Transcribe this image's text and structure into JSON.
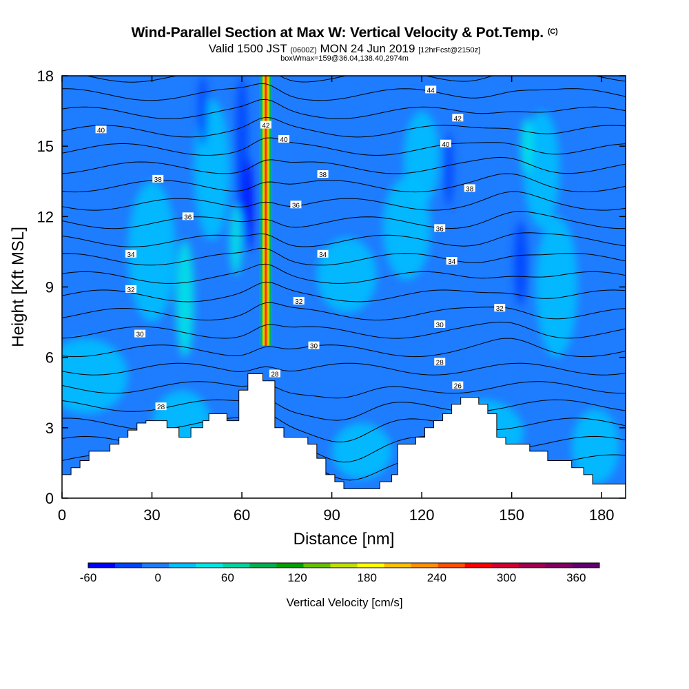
{
  "header": {
    "title": "Wind-Parallel Section at Max W: Vertical Velocity & Pot.Temp.",
    "title_tag": "(C)",
    "subtitle_prefix": "Valid 1500 JST",
    "subtitle_small": "(0600Z)",
    "subtitle_mid": "MON 24 Jun 2019",
    "subtitle_suffix": "[12hrFcst@2150z]",
    "box_info": "boxWmax=159@36.04,138.40,2974m"
  },
  "colors": {
    "background_field": "#1e7cff",
    "terrain": "#ffffff",
    "contour": "#000000",
    "colorbar": [
      "#0000ff",
      "#0044ff",
      "#1e7cff",
      "#00bfff",
      "#00e5e5",
      "#00d3a0",
      "#00b050",
      "#00a000",
      "#66c000",
      "#c0e000",
      "#ffff00",
      "#ffc000",
      "#ff9000",
      "#ff5000",
      "#ff0000",
      "#d00030",
      "#a00050",
      "#800060",
      "#600070"
    ]
  },
  "chart_data": {
    "type": "heatmap",
    "xlabel": "Distance [nm]",
    "ylabel": "Height [Kft MSL]",
    "xlim": [
      0,
      188
    ],
    "ylim": [
      0,
      18
    ],
    "x_ticks": [
      "0",
      "30",
      "60",
      "90",
      "120",
      "150",
      "180"
    ],
    "y_ticks": [
      "0",
      "3",
      "6",
      "9",
      "12",
      "15",
      "18"
    ],
    "colorbar": {
      "label": "Vertical Velocity [cm/s]",
      "range": [
        -60,
        380
      ],
      "tick_labels": [
        "-60",
        "0",
        "60",
        "120",
        "180",
        "240",
        "300",
        "360"
      ],
      "tick_values": [
        -60,
        0,
        60,
        120,
        180,
        240,
        300,
        360
      ]
    },
    "max_updraft": {
      "x": 68,
      "ymin": 6.5,
      "ymax": 18,
      "peak_cm_s": 340
    },
    "terrain": [
      [
        0,
        1.0
      ],
      [
        3,
        1.3
      ],
      [
        6,
        1.6
      ],
      [
        9,
        2.0
      ],
      [
        16,
        2.3
      ],
      [
        19,
        2.6
      ],
      [
        22,
        2.9
      ],
      [
        25,
        3.2
      ],
      [
        28,
        3.3
      ],
      [
        35,
        3.0
      ],
      [
        39,
        2.6
      ],
      [
        43,
        3.0
      ],
      [
        47,
        3.3
      ],
      [
        49,
        3.6
      ],
      [
        55,
        3.3
      ],
      [
        59,
        4.6
      ],
      [
        62,
        5.3
      ],
      [
        67,
        5.0
      ],
      [
        71,
        3.0
      ],
      [
        74,
        2.6
      ],
      [
        82,
        2.3
      ],
      [
        85,
        1.7
      ],
      [
        88,
        1.0
      ],
      [
        91,
        0.7
      ],
      [
        94,
        0.4
      ],
      [
        100,
        0.4
      ],
      [
        106,
        0.7
      ],
      [
        110,
        1.0
      ],
      [
        112,
        2.3
      ],
      [
        118,
        2.6
      ],
      [
        121,
        3.0
      ],
      [
        124,
        3.3
      ],
      [
        127,
        3.6
      ],
      [
        130,
        4.0
      ],
      [
        133,
        4.3
      ],
      [
        139,
        4.0
      ],
      [
        142,
        3.6
      ],
      [
        145,
        2.6
      ],
      [
        148,
        2.3
      ],
      [
        156,
        2.0
      ],
      [
        162,
        1.6
      ],
      [
        170,
        1.3
      ],
      [
        174,
        1.0
      ],
      [
        177,
        0.6
      ],
      [
        188,
        0.6
      ]
    ],
    "isentrope_labels": [
      {
        "text": "44",
        "x": 123,
        "y": 17.4
      },
      {
        "text": "42",
        "x": 68,
        "y": 15.9
      },
      {
        "text": "42",
        "x": 132,
        "y": 16.2
      },
      {
        "text": "40",
        "x": 13,
        "y": 15.7
      },
      {
        "text": "40",
        "x": 74,
        "y": 15.3
      },
      {
        "text": "40",
        "x": 128,
        "y": 15.1
      },
      {
        "text": "38",
        "x": 32,
        "y": 13.6
      },
      {
        "text": "38",
        "x": 87,
        "y": 13.8
      },
      {
        "text": "38",
        "x": 136,
        "y": 13.2
      },
      {
        "text": "36",
        "x": 42,
        "y": 12.0
      },
      {
        "text": "36",
        "x": 78,
        "y": 12.5
      },
      {
        "text": "36",
        "x": 126,
        "y": 11.5
      },
      {
        "text": "34",
        "x": 23,
        "y": 10.4
      },
      {
        "text": "34",
        "x": 87,
        "y": 10.4
      },
      {
        "text": "34",
        "x": 130,
        "y": 10.1
      },
      {
        "text": "32",
        "x": 23,
        "y": 8.9
      },
      {
        "text": "32",
        "x": 79,
        "y": 8.4
      },
      {
        "text": "32",
        "x": 146,
        "y": 8.1
      },
      {
        "text": "30",
        "x": 26,
        "y": 7.0
      },
      {
        "text": "30",
        "x": 126,
        "y": 7.4
      },
      {
        "text": "30",
        "x": 84,
        "y": 6.5
      },
      {
        "text": "28",
        "x": 126,
        "y": 5.8
      },
      {
        "text": "28",
        "x": 71,
        "y": 5.3
      },
      {
        "text": "26",
        "x": 132,
        "y": 4.8
      },
      {
        "text": "28",
        "x": 33,
        "y": 3.9
      }
    ]
  }
}
